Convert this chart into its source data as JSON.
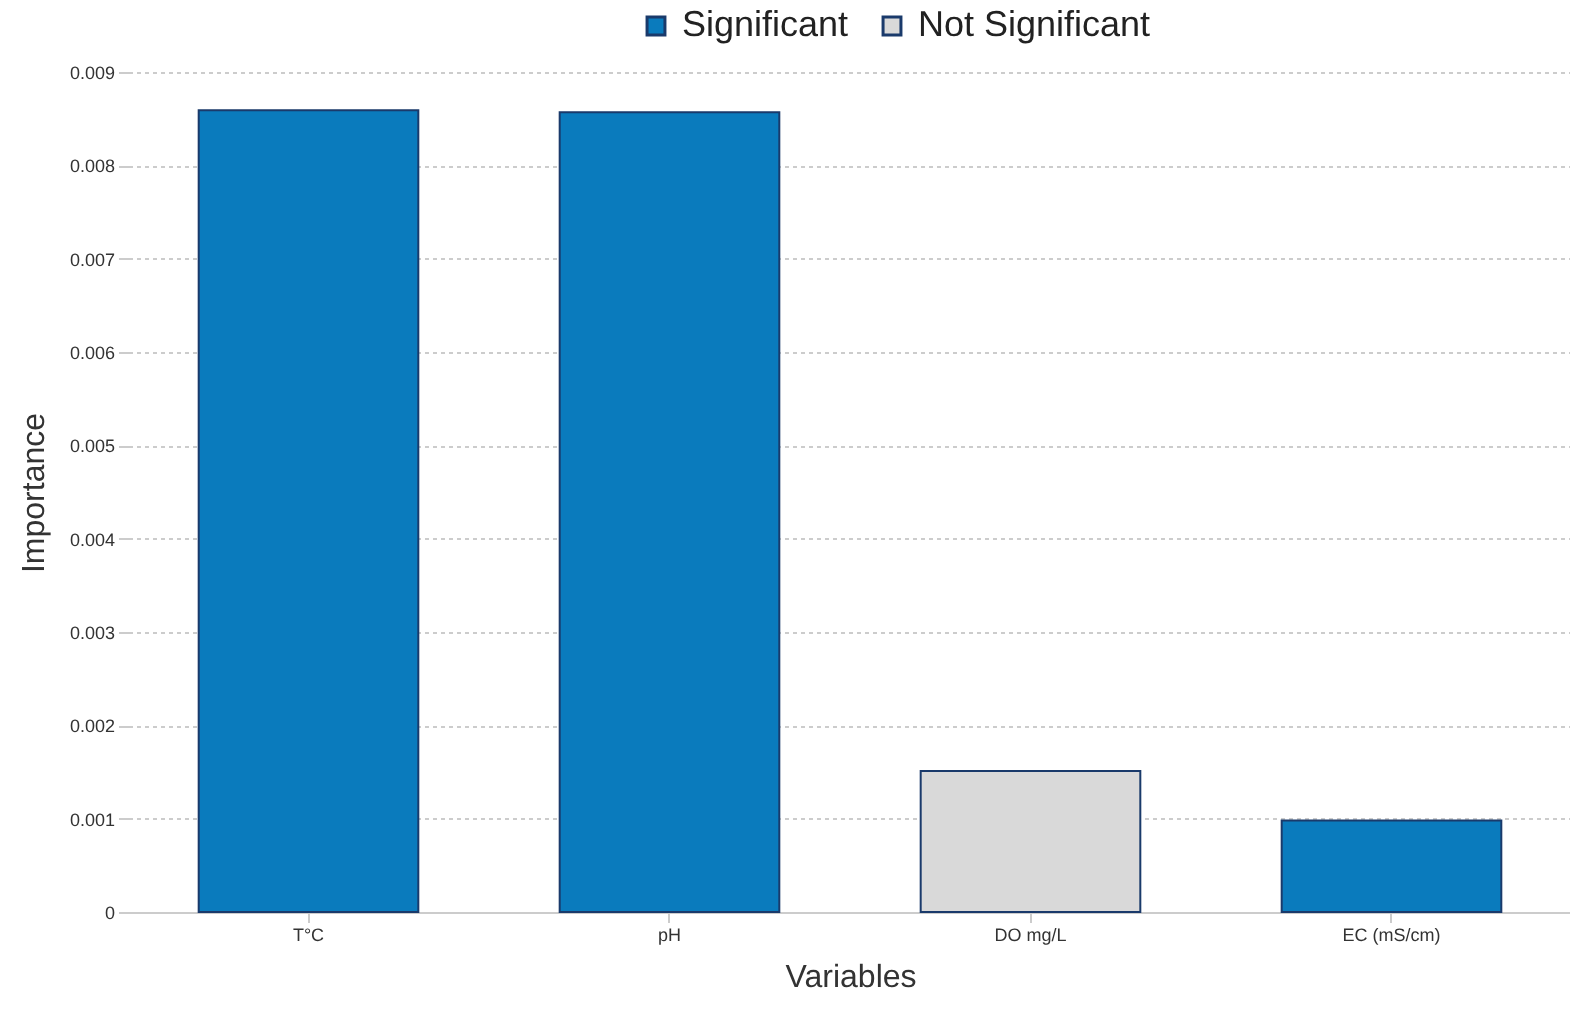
{
  "chart_data": {
    "type": "bar",
    "xlabel": "Variables",
    "ylabel": "Importance",
    "categories": [
      "T°C",
      "pH",
      "DO mg/L",
      "EC (mS/cm)"
    ],
    "series": [
      {
        "name": "Significant",
        "color": "#0a7bbd",
        "values": [
          0.00859,
          0.00857,
          null,
          0.00098
        ]
      },
      {
        "name": "Not Significant",
        "color": "#d9d9d9",
        "values": [
          null,
          null,
          0.00151,
          null
        ]
      }
    ],
    "ylim": [
      0,
      0.009
    ],
    "yticks": [
      0,
      0.001,
      0.002,
      0.003,
      0.004,
      0.005,
      0.006,
      0.007,
      0.008,
      0.009
    ],
    "grid": "y",
    "legend": "top"
  }
}
